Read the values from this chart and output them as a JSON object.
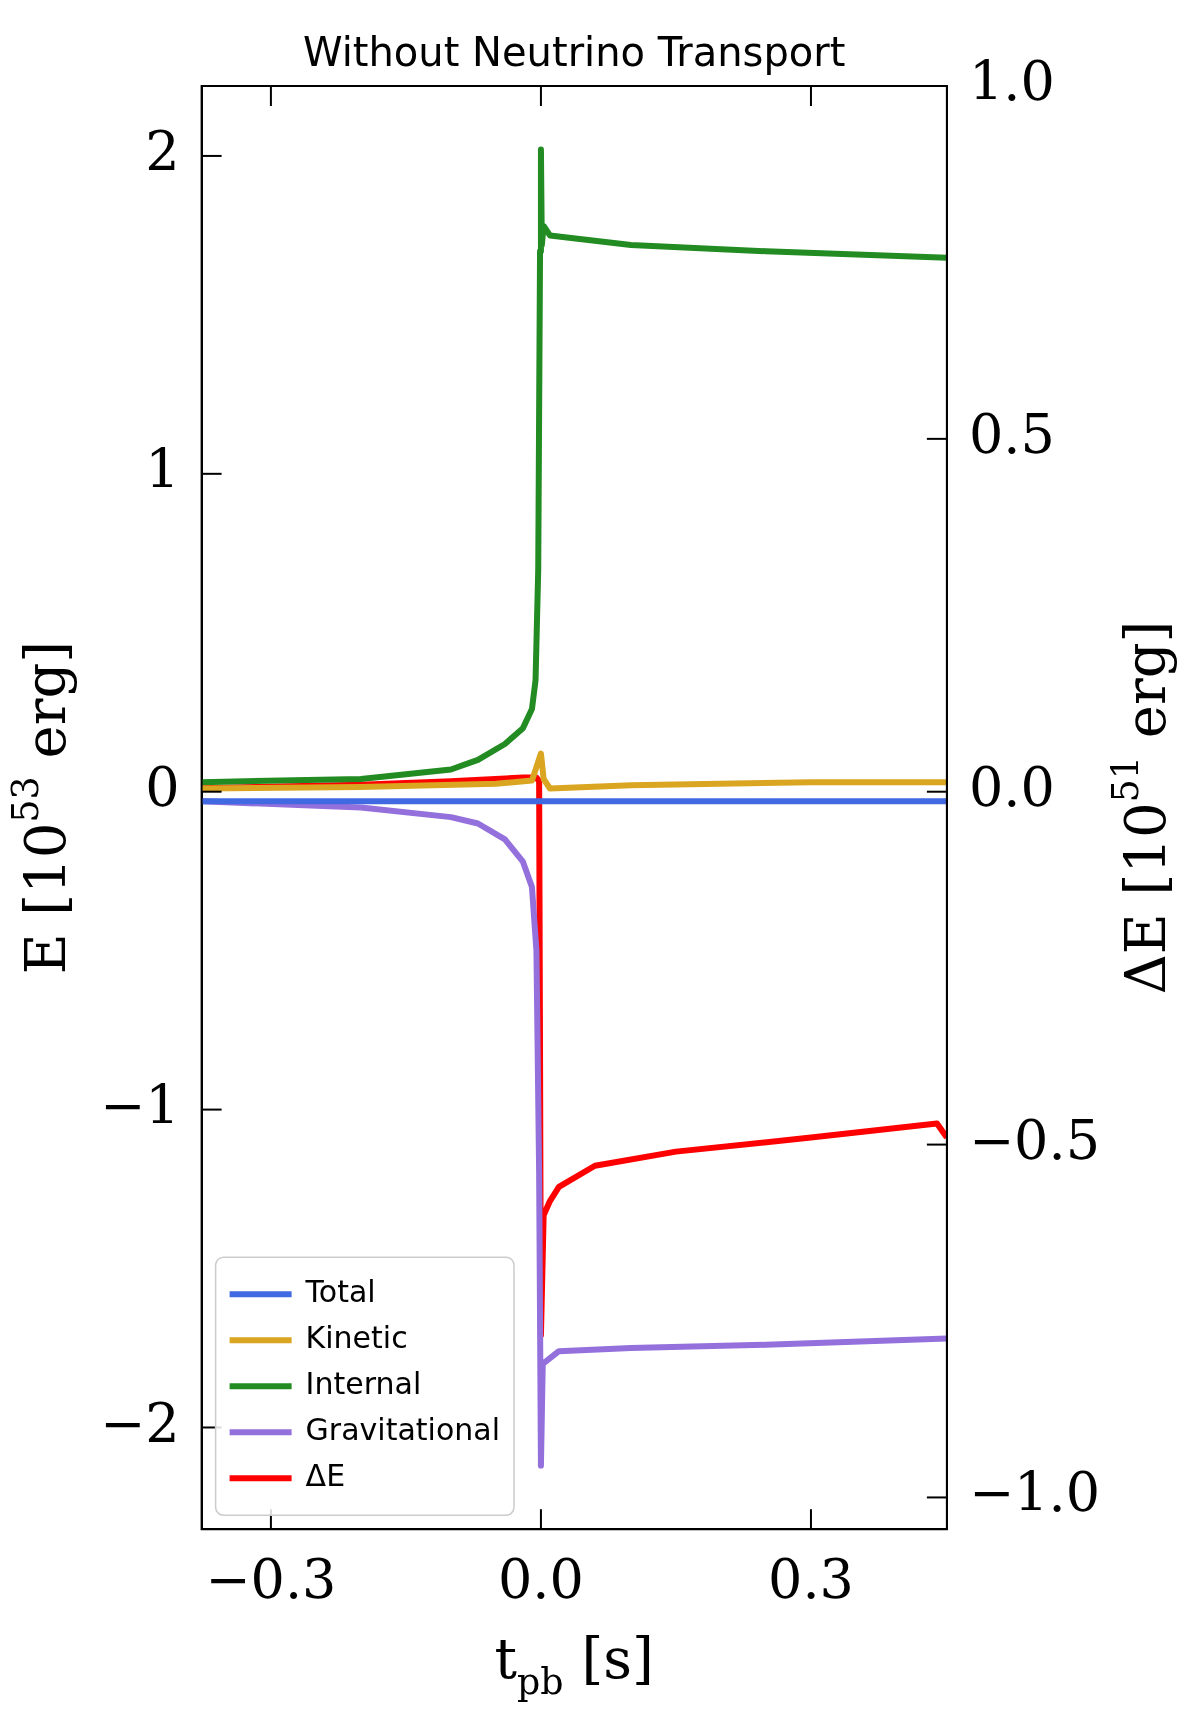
{
  "chart_data": {
    "type": "line",
    "title": "Without Neutrino Transport",
    "xlabel": "t$_{pb}$ [s]",
    "ylabel": "E [10$^{53}$ erg]",
    "y2label": "ΔE [10$^{51}$ erg]",
    "xlim": [
      -0.377,
      0.451
    ],
    "ylim": [
      -2.32,
      2.22
    ],
    "y2lim": [
      -1.045,
      1.0
    ],
    "xticks": [
      {
        "value": -0.3,
        "label": "−0.3"
      },
      {
        "value": 0,
        "label": "0.0"
      },
      {
        "value": 0.3,
        "label": "0.3"
      }
    ],
    "yticks": [
      {
        "value": -2,
        "label": "−2"
      },
      {
        "value": -1,
        "label": "−1"
      },
      {
        "value": 0,
        "label": "0"
      },
      {
        "value": 1,
        "label": "1"
      },
      {
        "value": 2,
        "label": "2"
      }
    ],
    "y2ticks": [
      {
        "value": -1,
        "label": "−1.0"
      },
      {
        "value": -0.5,
        "label": "−0.5"
      },
      {
        "value": 0,
        "label": "0.0"
      },
      {
        "value": 0.5,
        "label": "0.5"
      },
      {
        "value": 1,
        "label": "1.0"
      }
    ],
    "legend": "bottom left",
    "grid": false,
    "series": [
      {
        "name": "Total",
        "color": "#4169e1",
        "x": [
          -0.377,
          0.451
        ],
        "values": [
          -0.03,
          -0.03
        ]
      },
      {
        "name": "Kinetic",
        "color": "#daa520",
        "x": [
          -0.377,
          -0.2,
          -0.05,
          -0.01,
          0,
          0.003,
          0.01,
          0.1,
          0.3,
          0.451
        ],
        "values": [
          0.01,
          0.015,
          0.025,
          0.035,
          0.12,
          0.04,
          0.01,
          0.02,
          0.03,
          0.03
        ]
      },
      {
        "name": "Internal",
        "color": "#228b22",
        "x": [
          -0.377,
          -0.2,
          -0.1,
          -0.07,
          -0.04,
          -0.02,
          -0.01,
          -0.006,
          -0.003,
          -0.001,
          0,
          0.001,
          0.003,
          0.01,
          0.1,
          0.25,
          0.451
        ],
        "values": [
          0.03,
          0.04,
          0.07,
          0.1,
          0.15,
          0.2,
          0.26,
          0.35,
          0.7,
          1.7,
          2.02,
          1.72,
          1.78,
          1.75,
          1.72,
          1.7,
          1.68
        ]
      },
      {
        "name": "Gravitational",
        "color": "#9370db",
        "x": [
          -0.377,
          -0.2,
          -0.1,
          -0.07,
          -0.04,
          -0.02,
          -0.01,
          -0.005,
          -0.002,
          0,
          0.002,
          0.02,
          0.1,
          0.25,
          0.451
        ],
        "values": [
          -0.03,
          -0.05,
          -0.08,
          -0.1,
          -0.15,
          -0.22,
          -0.3,
          -0.5,
          -1.2,
          -2.12,
          -1.8,
          -1.76,
          -1.75,
          -1.74,
          -1.72
        ]
      },
      {
        "name": "ΔE",
        "color": "#ff0000",
        "axis": "y2",
        "x": [
          -0.377,
          -0.2,
          -0.1,
          -0.02,
          -0.005,
          -0.002,
          0,
          0.003,
          0.01,
          0.02,
          0.06,
          0.15,
          0.3,
          0.44,
          0.451
        ],
        "values": [
          0.005,
          0.01,
          0.015,
          0.02,
          0.02,
          0.015,
          -0.77,
          -0.6,
          -0.58,
          -0.56,
          -0.53,
          -0.51,
          -0.49,
          -0.47,
          -0.49
        ]
      }
    ]
  }
}
